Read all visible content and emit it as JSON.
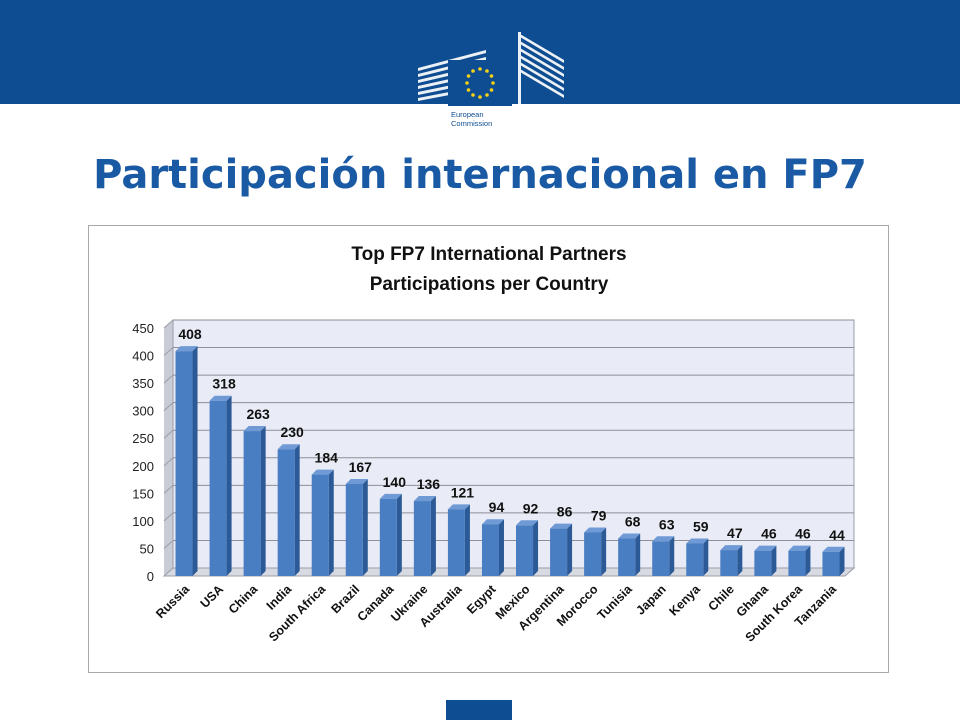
{
  "slide": {
    "title": "Participación internacional en FP7",
    "logo": {
      "line1": "European",
      "line2": "Commission"
    }
  },
  "colors": {
    "brand_blue": "#0e4d91",
    "title_blue": "#1a5aa5",
    "bar_fill": "#4a7ec2",
    "bar_side": "#2c5a96",
    "bar_top": "#6f9ad6",
    "plot_bg": "#e9ecf6",
    "eu_yellow": "#f7d117"
  },
  "chart_data": {
    "type": "bar",
    "title": "Top FP7 International Partners",
    "subtitle": "Participations per Country",
    "categories": [
      "Russia",
      "USA",
      "China",
      "India",
      "South Africa",
      "Brazil",
      "Canada",
      "Ukraine",
      "Australia",
      "Egypt",
      "Mexico",
      "Argentina",
      "Morocco",
      "Tunisia",
      "Japan",
      "Kenya",
      "Chile",
      "Ghana",
      "South Korea",
      "Tanzania"
    ],
    "values": [
      408,
      318,
      263,
      230,
      184,
      167,
      140,
      136,
      121,
      94,
      92,
      86,
      79,
      68,
      63,
      59,
      47,
      46,
      46,
      44
    ],
    "ylim": [
      0,
      450
    ],
    "yticks": [
      0,
      50,
      100,
      150,
      200,
      250,
      300,
      350,
      400,
      450
    ],
    "grid": true,
    "legend": "none",
    "data_labels": true
  }
}
